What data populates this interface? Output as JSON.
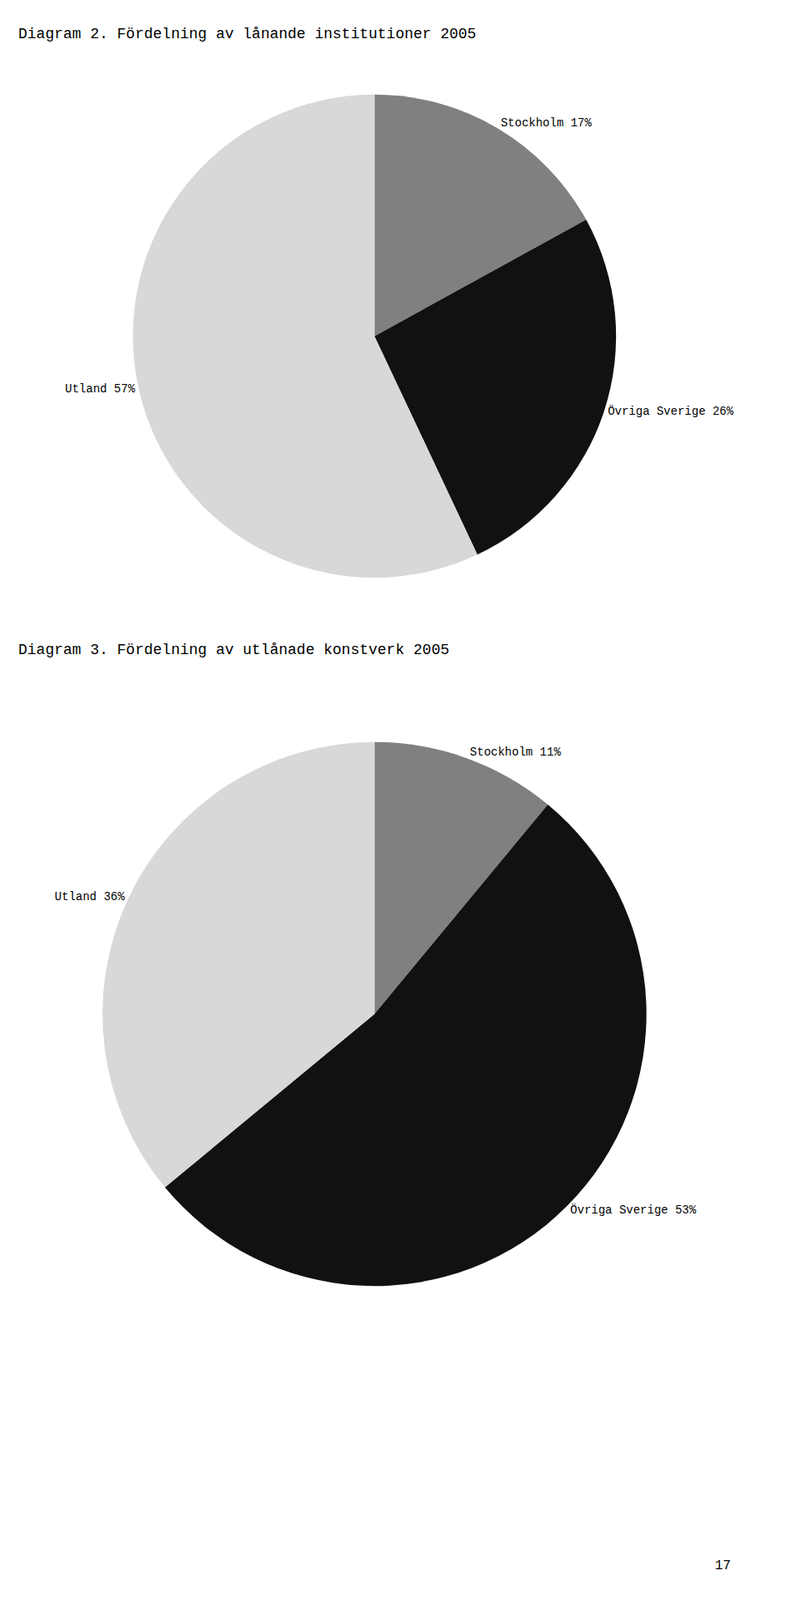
{
  "chart_data": [
    {
      "type": "pie",
      "title": "Diagram 2. Fördelning av lånande institutioner 2005",
      "values": [
        17,
        26,
        57
      ],
      "value_labels": [
        "Stockholm 17%",
        "Övriga Sverige 26%",
        "Utland 57%"
      ],
      "colors": [
        "#808080",
        "#111111",
        "#d8d8d8"
      ],
      "data_labels": true
    },
    {
      "type": "pie",
      "title": "Diagram 3. Fördelning av utlånade konstverk 2005",
      "values": [
        11,
        53,
        36
      ],
      "value_labels": [
        "Stockholm 11%",
        "Övriga Sverige 53%",
        "Utland 36%"
      ],
      "colors": [
        "#808080",
        "#111111",
        "#d8d8d8"
      ],
      "data_labels": true,
      "annotations": [
        "17"
      ]
    }
  ]
}
